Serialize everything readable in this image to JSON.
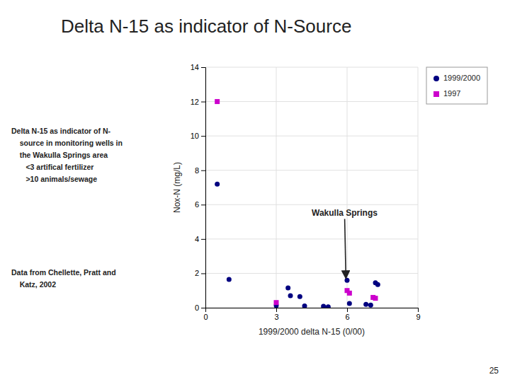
{
  "chart_data": {
    "type": "scatter",
    "title": "Delta N-15 as indicator of N-Source",
    "text_blocks": [
      "Delta N-15 as indicator of N-\n    source in monitoring wells in\n    the Wakulla Springs area\n       <3 artifical fertilizer\n       >10 animals/sewage",
      "Data from Chellette, Pratt and\n    Katz, 2002"
    ],
    "page_number": "25",
    "xlabel": "1999/2000 delta N-15 (0/00)",
    "ylabel": "Nox-N (mg/L)",
    "xlim": [
      0,
      9
    ],
    "ylim": [
      0,
      14
    ],
    "xticks": [
      0,
      3,
      6,
      9
    ],
    "yticks": [
      0,
      2,
      4,
      6,
      8,
      10,
      12,
      14
    ],
    "grid": true,
    "legend": "right",
    "series": [
      {
        "name": "1999/2000",
        "color": "#000080",
        "marker": "circle",
        "x": [
          0.5,
          1.0,
          3.0,
          3.5,
          3.6,
          4.0,
          4.2,
          5.0,
          5.2,
          6.0,
          6.1,
          6.8,
          7.0,
          7.2,
          7.3
        ],
        "values": [
          7.2,
          1.65,
          0.12,
          1.15,
          0.7,
          0.65,
          0.1,
          0.08,
          0.05,
          1.6,
          0.25,
          0.2,
          0.15,
          1.45,
          1.35
        ]
      },
      {
        "name": "1997",
        "color": "#CC00CC",
        "marker": "square",
        "x": [
          0.5,
          3.0,
          6.0,
          6.1,
          7.1,
          7.2
        ],
        "values": [
          12.0,
          0.3,
          1.0,
          0.85,
          0.6,
          0.55
        ]
      }
    ],
    "annotations": [
      {
        "text": "Wakulla Springs",
        "x": 4.5,
        "y": 5.5,
        "arrow_x": 5.95,
        "arrow_y": 1.7
      }
    ]
  }
}
